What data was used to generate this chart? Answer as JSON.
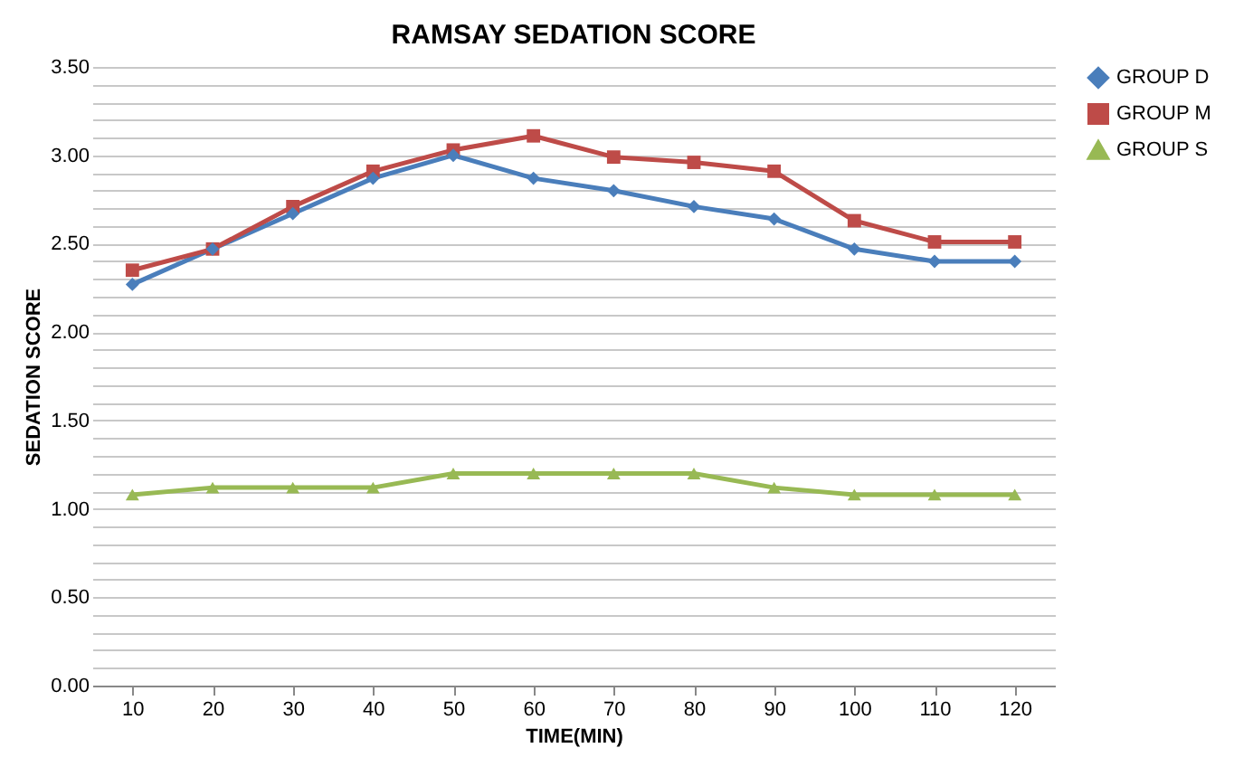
{
  "chart_data": {
    "type": "line",
    "title": "RAMSAY SEDATION SCORE",
    "xlabel": "TIME(MIN)",
    "ylabel": "SEDATION SCORE",
    "categories": [
      "10",
      "20",
      "30",
      "40",
      "50",
      "60",
      "70",
      "80",
      "90",
      "100",
      "110",
      "120"
    ],
    "series": [
      {
        "name": "GROUP D",
        "color": "#4a7ebb",
        "marker": "diamond",
        "values": [
          2.27,
          2.47,
          2.67,
          2.87,
          3.0,
          2.87,
          2.8,
          2.71,
          2.64,
          2.47,
          2.4,
          2.4
        ]
      },
      {
        "name": "GROUP M",
        "color": "#be4b48",
        "marker": "square",
        "values": [
          2.35,
          2.47,
          2.71,
          2.91,
          3.03,
          3.11,
          2.99,
          2.96,
          2.91,
          2.63,
          2.51,
          2.51
        ]
      },
      {
        "name": "GROUP S",
        "color": "#98b954",
        "marker": "triangle",
        "values": [
          1.08,
          1.12,
          1.12,
          1.12,
          1.2,
          1.2,
          1.2,
          1.2,
          1.12,
          1.08,
          1.08,
          1.08
        ]
      }
    ],
    "ylim": [
      0,
      3.5
    ],
    "yticks": [
      "0.00",
      {
        "value": 0.1,
        "label": null
      },
      {
        "value": 0.2,
        "label": null
      },
      {
        "value": 0.3,
        "label": null
      },
      {
        "value": 0.4,
        "label": null
      },
      {
        "value": 0.5,
        "label": "0.50"
      },
      {
        "value": 0.6,
        "label": null
      },
      {
        "value": 0.7,
        "label": null
      },
      {
        "value": 0.8,
        "label": null
      },
      {
        "value": 0.9,
        "label": null
      },
      {
        "value": 1.0,
        "label": "1.00"
      },
      {
        "value": 1.1,
        "label": null
      },
      {
        "value": 1.2,
        "label": null
      },
      {
        "value": 1.3,
        "label": null
      },
      {
        "value": 1.4,
        "label": null
      },
      {
        "value": 1.5,
        "label": "1.50"
      },
      {
        "value": 1.6,
        "label": null
      },
      {
        "value": 1.7,
        "label": null
      },
      {
        "value": 1.8,
        "label": null
      },
      {
        "value": 1.9,
        "label": null
      },
      {
        "value": 2.0,
        "label": "2.00"
      },
      {
        "value": 2.1,
        "label": null
      },
      {
        "value": 2.2,
        "label": null
      },
      {
        "value": 2.3,
        "label": null
      },
      {
        "value": 2.4,
        "label": null
      },
      {
        "value": 2.5,
        "label": "2.50"
      },
      {
        "value": 2.6,
        "label": null
      },
      {
        "value": 2.7,
        "label": null
      },
      {
        "value": 2.8,
        "label": null
      },
      {
        "value": 2.9,
        "label": null
      },
      {
        "value": 3.0,
        "label": "3.00"
      },
      {
        "value": 3.1,
        "label": null
      },
      {
        "value": 3.2,
        "label": null
      },
      {
        "value": 3.3,
        "label": null
      },
      {
        "value": 3.4,
        "label": null
      },
      {
        "value": 3.5,
        "label": "3.50"
      }
    ],
    "grid": "y",
    "legend": "right",
    "line_style": "solid"
  }
}
